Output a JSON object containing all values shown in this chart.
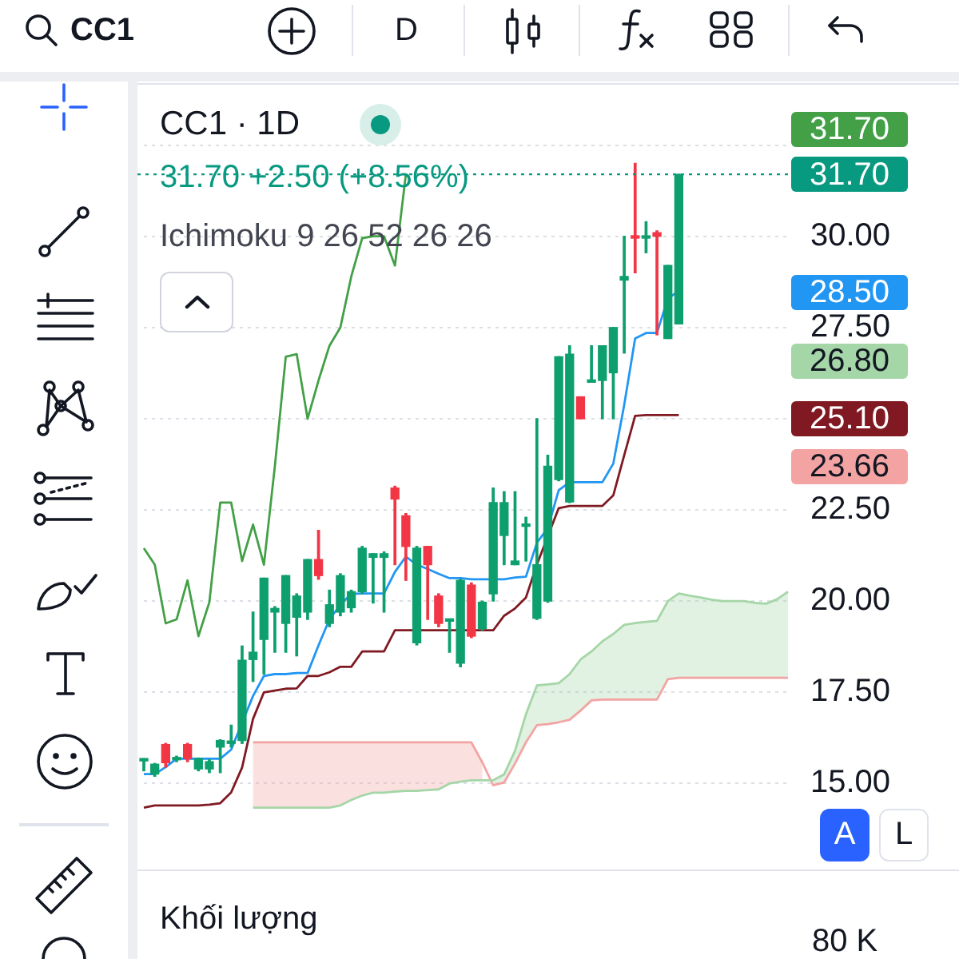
{
  "chart_data": [
    {
      "type": "candlestick",
      "title": "CC1 · 1D",
      "subtitle": "31.70 +2.50 (+8.56%)",
      "annotations": [
        "Ichimoku 9 26 52 26 26",
        "CC1",
        "D",
        "A",
        "L",
        "31.70",
        "28.50",
        "26.80",
        "25.10",
        "23.66"
      ],
      "categories": [
        null,
        null,
        null,
        null,
        null,
        null,
        null,
        null,
        null,
        null,
        null,
        null,
        null,
        null,
        null,
        null,
        null,
        null,
        null,
        null,
        null,
        null,
        null,
        null,
        null,
        null,
        null,
        null,
        null,
        null,
        null,
        null,
        null,
        null,
        null,
        null,
        null,
        null,
        null,
        null,
        null,
        null,
        null,
        null,
        null,
        null,
        null,
        null,
        null,
        null,
        null,
        null,
        null,
        null,
        null,
        null,
        null,
        null,
        null,
        null
      ],
      "ohlc": [
        [
          15.62,
          15.68,
          15.35,
          15.66
        ],
        [
          15.26,
          15.55,
          15.2,
          15.53
        ],
        [
          16.07,
          16.1,
          15.45,
          15.57
        ],
        [
          15.65,
          15.75,
          15.6,
          15.7
        ],
        [
          16.07,
          16.1,
          15.6,
          15.68
        ],
        [
          15.4,
          15.7,
          15.35,
          15.68
        ],
        [
          15.4,
          15.65,
          15.3,
          15.6
        ],
        [
          16.0,
          16.2,
          15.3,
          16.18
        ],
        [
          16.1,
          16.6,
          16.0,
          16.15
        ],
        [
          16.18,
          18.77,
          16.1,
          18.38
        ],
        [
          18.4,
          19.7,
          17.8,
          18.6
        ],
        [
          18.95,
          20.63,
          18.0,
          20.63
        ],
        [
          19.7,
          19.85,
          18.6,
          19.8
        ],
        [
          19.39,
          20.7,
          18.6,
          20.7
        ],
        [
          19.56,
          20.2,
          18.5,
          20.14
        ],
        [
          19.7,
          21.14,
          19.5,
          21.14
        ],
        [
          21.14,
          21.94,
          20.6,
          20.7
        ],
        [
          19.39,
          20.3,
          19.3,
          19.9
        ],
        [
          19.7,
          20.75,
          19.6,
          20.7
        ],
        [
          19.82,
          20.3,
          19.7,
          20.26
        ],
        [
          20.26,
          21.5,
          20.2,
          21.45
        ],
        [
          21.2,
          21.3,
          19.95,
          21.3
        ],
        [
          21.2,
          21.35,
          19.7,
          21.3
        ],
        [
          23.1,
          23.15,
          21.0,
          22.8
        ],
        [
          22.34,
          22.4,
          20.57,
          21.5
        ],
        [
          18.86,
          21.5,
          18.8,
          21.45
        ],
        [
          21.5,
          21.5,
          19.5,
          21.0
        ],
        [
          20.14,
          20.2,
          19.3,
          19.39
        ],
        [
          19.45,
          19.5,
          18.6,
          19.5
        ],
        [
          18.3,
          20.6,
          18.2,
          20.57
        ],
        [
          20.44,
          20.5,
          19.0,
          19.04
        ],
        [
          19.25,
          20.0,
          19.2,
          19.97
        ],
        [
          20.2,
          23.1,
          20.0,
          22.7
        ],
        [
          21.8,
          23.0,
          21.0,
          22.7
        ],
        [
          21.0,
          23.0,
          21.0,
          21.1
        ],
        [
          22.05,
          22.3,
          21.1,
          22.1
        ],
        [
          19.53,
          25.0,
          19.5,
          21.0
        ],
        [
          20.0,
          24.0,
          19.97,
          23.7
        ],
        [
          23.33,
          26.7,
          23.3,
          26.7
        ],
        [
          22.72,
          27.0,
          22.7,
          26.77
        ],
        [
          25.6,
          25.6,
          25.0,
          25.0
        ],
        [
          26.0,
          27.0,
          26.0,
          26.05
        ],
        [
          26.05,
          27.0,
          25.0,
          27.0
        ],
        [
          26.26,
          27.5,
          25.0,
          27.5
        ],
        [
          28.8,
          30.0,
          26.8,
          28.9
        ],
        [
          30.0,
          32.0,
          29.0,
          29.95
        ],
        [
          29.95,
          30.4,
          29.55,
          30.0
        ],
        [
          30.1,
          30.15,
          27.3,
          30.0
        ],
        [
          27.2,
          29.2,
          27.2,
          29.2
        ],
        [
          27.6,
          31.7,
          27.6,
          31.7
        ],
        null,
        null,
        null,
        null,
        null,
        null,
        null,
        null,
        null,
        null
      ],
      "colors": [
        "#0e9f6e",
        "#0e9f6e",
        "#f23645",
        "#0e9f6e",
        "#f23645",
        "#0e9f6e",
        "#0e9f6e",
        "#0e9f6e",
        "#0e9f6e",
        "#0e9f6e",
        "#0e9f6e",
        "#0e9f6e",
        "#0e9f6e",
        "#0e9f6e",
        "#0e9f6e",
        "#0e9f6e",
        "#f23645",
        "#0e9f6e",
        "#0e9f6e",
        "#0e9f6e",
        "#0e9f6e",
        "#0e9f6e",
        "#0e9f6e",
        "#f23645",
        "#f23645",
        "#0e9f6e",
        "#f23645",
        "#f23645",
        "#0e9f6e",
        "#0e9f6e",
        "#f23645",
        "#0e9f6e",
        "#0e9f6e",
        "#0e9f6e",
        "#0e9f6e",
        "#0e9f6e",
        "#0e9f6e",
        "#0e9f6e",
        "#0e9f6e",
        "#0e9f6e",
        "#f23645",
        "#0e9f6e",
        "#0e9f6e",
        "#0e9f6e",
        "#0e9f6e",
        "#f23645",
        "#0e9f6e",
        "#f23645",
        "#0e9f6e",
        "#0e9f6e",
        null,
        null,
        null,
        null,
        null,
        null,
        null,
        null,
        null,
        null
      ],
      "series": [
        {
          "type": "line",
          "color": "#a5d6a7",
          "values": [
            null,
            null,
            null,
            null,
            null,
            null,
            null,
            null,
            null,
            null,
            14.34,
            14.34,
            14.34,
            14.34,
            14.34,
            14.34,
            14.34,
            14.34,
            14.4,
            14.55,
            14.67,
            14.75,
            14.75,
            14.78,
            14.8,
            14.8,
            14.82,
            14.84,
            15.0,
            15.05,
            15.09,
            15.09,
            15.09,
            15.25,
            15.9,
            16.9,
            17.69,
            17.72,
            17.75,
            18.0,
            18.4,
            18.62,
            18.9,
            19.1,
            19.35,
            19.4,
            19.43,
            19.46,
            20.0,
            20.21,
            20.15,
            20.1,
            20.04,
            20.0,
            20.0,
            20.0,
            19.95,
            19.93,
            20.05,
            20.26
          ],
          "upper": [
            null,
            null,
            null,
            null,
            null,
            null,
            null,
            null,
            null,
            null,
            null,
            null,
            null,
            null,
            null,
            null,
            null,
            null,
            null,
            null,
            null,
            null,
            null,
            null,
            null,
            null,
            null,
            null,
            null,
            null,
            null,
            null,
            15.09,
            15.25,
            15.9,
            16.9,
            17.69,
            17.72,
            17.75,
            18.0,
            18.4,
            18.62,
            18.9,
            19.1,
            19.35,
            19.4,
            19.43,
            19.46,
            20.0,
            20.21,
            20.15,
            20.1,
            20.04,
            20.0,
            20.0,
            20.0,
            19.95,
            19.93,
            20.05,
            20.26
          ],
          "lower": [
            null,
            null,
            null,
            null,
            null,
            null,
            null,
            null,
            null,
            null,
            null,
            null,
            null,
            null,
            null,
            null,
            null,
            null,
            null,
            null,
            null,
            null,
            null,
            null,
            null,
            null,
            null,
            null,
            null,
            null,
            null,
            null,
            14.95,
            15.03,
            15.55,
            16.13,
            16.6,
            16.63,
            16.68,
            16.75,
            17.0,
            17.28,
            17.3,
            17.3,
            17.3,
            17.3,
            17.3,
            17.3,
            17.86,
            17.9,
            17.9,
            17.9,
            17.9,
            17.9,
            17.9,
            17.9,
            17.9,
            17.9,
            17.9,
            17.9
          ]
        },
        {
          "type": "line",
          "color": "#f4a3a3",
          "values": [
            null,
            null,
            null,
            null,
            null,
            null,
            null,
            null,
            null,
            null,
            16.13,
            16.13,
            16.13,
            16.13,
            16.13,
            16.13,
            16.13,
            16.13,
            16.13,
            16.13,
            16.13,
            16.13,
            16.13,
            16.13,
            16.13,
            16.13,
            16.13,
            16.13,
            16.13,
            16.13,
            16.13,
            15.58,
            14.95,
            15.03,
            15.55,
            16.13,
            16.6,
            16.63,
            16.68,
            16.75,
            17.0,
            17.28,
            17.3,
            17.3,
            17.3,
            17.3,
            17.3,
            17.3,
            17.86,
            17.9,
            17.9,
            17.9,
            17.9,
            17.9,
            17.9,
            17.9,
            17.9,
            17.9,
            17.9,
            17.9
          ],
          "upper": [
            null,
            null,
            null,
            null,
            null,
            null,
            null,
            null,
            null,
            null,
            16.13,
            16.13,
            16.13,
            16.13,
            16.13,
            16.13,
            16.13,
            16.13,
            16.13,
            16.13,
            16.13,
            16.13,
            16.13,
            16.13,
            16.13,
            16.13,
            16.13,
            16.13,
            16.13,
            16.13,
            16.13,
            15.58,
            null,
            null,
            null,
            null,
            null,
            null,
            null,
            null,
            null,
            null,
            null,
            null,
            null,
            null,
            null,
            null,
            null,
            null,
            null,
            null,
            null,
            null,
            null,
            null,
            null,
            null,
            null,
            null
          ],
          "lower": [
            null,
            null,
            null,
            null,
            null,
            null,
            null,
            null,
            null,
            null,
            14.34,
            14.34,
            14.34,
            14.34,
            14.34,
            14.34,
            14.34,
            14.34,
            14.4,
            14.55,
            14.67,
            14.75,
            14.75,
            14.78,
            14.8,
            14.8,
            14.82,
            14.84,
            15.0,
            15.05,
            15.09,
            15.09,
            null,
            null,
            null,
            null,
            null,
            null,
            null,
            null,
            null,
            null,
            null,
            null,
            null,
            null,
            null,
            null,
            null,
            null,
            null,
            null,
            null,
            null,
            null,
            null,
            null,
            null,
            null,
            null
          ]
        },
        {
          "type": "line",
          "color": "#43a047",
          "values": [
            21.45,
            21.0,
            19.39,
            19.5,
            20.57,
            19.04,
            19.97,
            22.7,
            22.7,
            21.1,
            22.1,
            21.0,
            23.7,
            26.7,
            26.77,
            25.0,
            26.05,
            27.0,
            27.5,
            28.9,
            29.95,
            30.0,
            30.0,
            29.2,
            31.7,
            null,
            null,
            null,
            null,
            null,
            null,
            null,
            null,
            null,
            null,
            null,
            null,
            null,
            null,
            null,
            null,
            null,
            null,
            null,
            null,
            null,
            null,
            null,
            null,
            null,
            null,
            null,
            null,
            null,
            null,
            null,
            null,
            null,
            null,
            null
          ]
        },
        {
          "type": "line",
          "color": "#801922",
          "values": [
            14.34,
            14.4,
            14.4,
            14.4,
            14.4,
            14.4,
            14.42,
            14.46,
            14.76,
            15.44,
            16.77,
            17.5,
            17.55,
            17.6,
            17.61,
            17.95,
            17.95,
            18.05,
            18.2,
            18.2,
            18.62,
            18.62,
            18.62,
            19.2,
            19.2,
            19.2,
            19.2,
            19.2,
            19.2,
            19.2,
            19.2,
            19.2,
            19.2,
            19.6,
            19.8,
            20.1,
            21.0,
            null,
            22.55,
            22.61,
            22.61,
            22.61,
            22.61,
            22.9,
            24.0,
            25.08,
            25.1,
            25.1,
            25.1,
            25.1,
            null,
            null,
            null,
            null,
            null,
            null,
            null,
            null,
            null,
            null
          ]
        },
        {
          "type": "line",
          "color": "#2196f3",
          "values": [
            15.26,
            15.26,
            15.45,
            15.68,
            15.68,
            15.68,
            15.68,
            15.68,
            15.93,
            null,
            17.4,
            17.95,
            18.0,
            18.0,
            18.03,
            18.03,
            18.79,
            19.5,
            19.9,
            20.2,
            20.21,
            20.21,
            20.21,
            20.8,
            21.22,
            21.0,
            20.88,
            20.75,
            20.63,
            20.63,
            20.6,
            20.6,
            20.6,
            20.6,
            20.65,
            20.67,
            21.6,
            22.0,
            23.04,
            23.26,
            23.26,
            23.26,
            23.26,
            23.77,
            25.38,
            27.2,
            27.35,
            27.35,
            28.3,
            28.5,
            null,
            null,
            null,
            null,
            null,
            null,
            null,
            null,
            null,
            null
          ]
        }
      ],
      "ylim": [
        12.6,
        34.2
      ],
      "yticks": [
        {
          "value": 15,
          "label": "15.00"
        },
        {
          "value": 17.5,
          "label": "17.50"
        },
        {
          "value": 20,
          "label": "20.00"
        },
        {
          "value": 22.5,
          "label": "22.50"
        },
        {
          "value": 25,
          "label": null
        },
        {
          "value": 27.5,
          "label": "27.50"
        },
        {
          "value": 30,
          "label": "30.00"
        },
        {
          "value": 32.5,
          "label": null
        }
      ],
      "ref_lines": [
        {
          "axis": "y",
          "value": 31.7,
          "label": "31.70",
          "color": "#089981",
          "line_style": "dotted"
        }
      ],
      "grid": "y",
      "tick_labels": "y"
    },
    {
      "type": "other",
      "title": "Khối lượng",
      "annotations": [
        "80 K"
      ]
    }
  ]
}
